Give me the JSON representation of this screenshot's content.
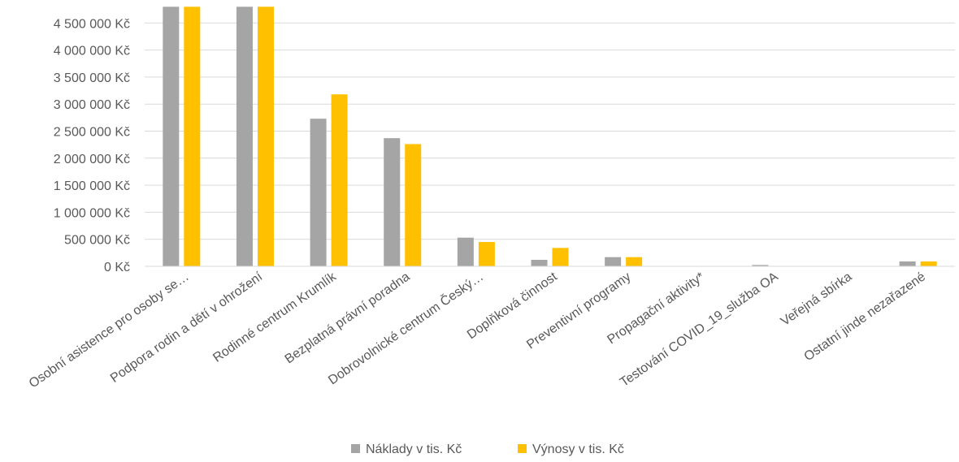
{
  "chart_data": {
    "type": "bar",
    "categories": [
      "Osobní asistence pro osoby se…",
      "Podpora rodin a dětí v ohrožení",
      "Rodinné centrum Krumlík",
      "Bezplatná právní poradna",
      "Dobrovolnické centrum Český…",
      "Doplňková činnost",
      "Preventivní programy",
      "Propagační aktivity*",
      "Testování COVID_19_služba OA",
      "Veřejná sbírka",
      "Ostatní jinde nezařazené"
    ],
    "series": [
      {
        "name": "Náklady v tis. Kč",
        "color": "#A5A5A5",
        "values": [
          4800000,
          4800000,
          2730000,
          2370000,
          530000,
          120000,
          170000,
          0,
          25000,
          0,
          90000
        ]
      },
      {
        "name": "Výnosy v tis. Kč",
        "color": "#FFC000",
        "values": [
          4800000,
          4800000,
          3180000,
          2260000,
          450000,
          340000,
          170000,
          0,
          0,
          0,
          90000
        ]
      }
    ],
    "y_ticks": [
      "0 Kč",
      "500 000 Kč",
      "1 000 000 Kč",
      "1 500 000 Kč",
      "2 000 000 Kč",
      "2 500 000 Kč",
      "3 000 000 Kč",
      "3 500 000 Kč",
      "4 000 000 Kč",
      "4 500 000 Kč"
    ],
    "ylim": [
      0,
      4800000
    ],
    "title": "",
    "xlabel": "",
    "ylabel": "",
    "legend": "bottom",
    "grid": true
  }
}
